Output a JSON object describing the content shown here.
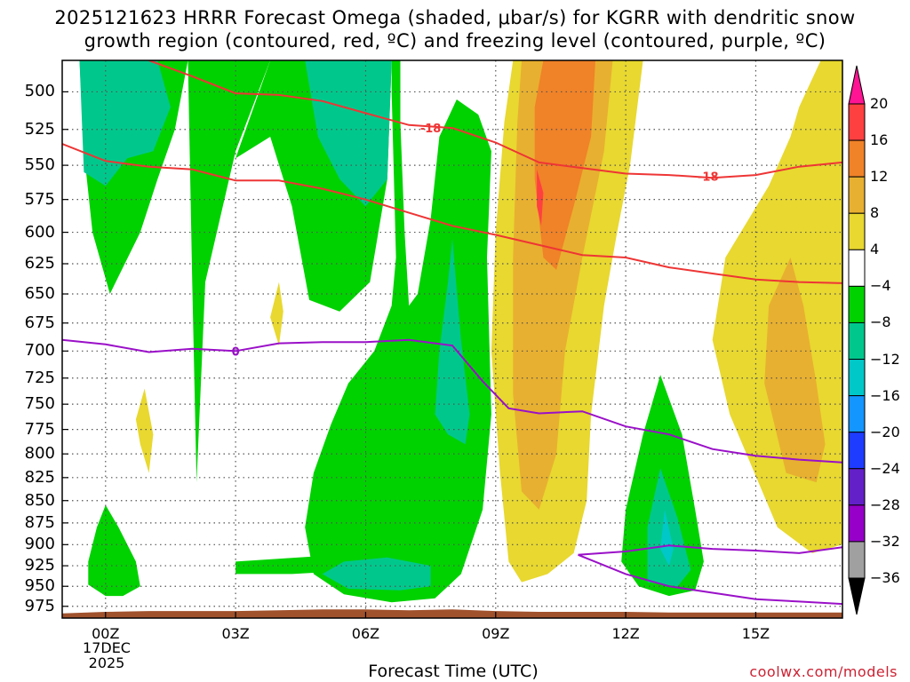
{
  "title": {
    "line1": "2025121623 HRRR Forecast Omega (shaded, μbar/s) for KGRR with dendritic snow",
    "line2": "growth region (contoured, red, ºC) and freezing level (contoured, purple, ºC)"
  },
  "xlabel": "Forecast Time (UTC)",
  "credit": "coolwx.com/models",
  "date_lines": [
    "17DEC",
    "2025"
  ],
  "chart_data": {
    "type": "heatmap",
    "title": "2025121623 HRRR Forecast Omega (shaded, μbar/s) for KGRR with dendritic snow growth region (contoured, red, ºC) and freezing level (contoured, purple, ºC)",
    "xlabel": "Forecast Time (UTC)",
    "ylabel": "",
    "x_ticks": [
      "00Z",
      "03Z",
      "06Z",
      "09Z",
      "12Z",
      "15Z"
    ],
    "x_tick_hours": [
      0,
      3,
      6,
      9,
      12,
      15
    ],
    "xlim_hours": [
      -1,
      17
    ],
    "y_ticks": [
      500,
      525,
      550,
      575,
      600,
      625,
      650,
      675,
      700,
      725,
      750,
      775,
      800,
      825,
      850,
      875,
      900,
      925,
      950,
      975
    ],
    "ylim_hPa": [
      480,
      990
    ],
    "grid": true,
    "colorbar": {
      "labels": [
        "20",
        "16",
        "12",
        "8",
        "4",
        "−4",
        "−8",
        "−12",
        "−16",
        "−20",
        "−24",
        "−28",
        "−32",
        "−36"
      ],
      "colors": [
        "#ff1493",
        "#ff4040",
        "#f08228",
        "#e8b030",
        "#e8d830",
        "#ffffff",
        "#00d200",
        "#00c88c",
        "#00c8c8",
        "#1496ff",
        "#1e3cff",
        "#6420c8",
        "#9600c8",
        "#a0a0a0",
        "#000000"
      ],
      "placement": "right"
    },
    "omega_regions": [
      {
        "level": -4,
        "color": "#00d200",
        "points": [
          [
            -0.6,
            480
          ],
          [
            1.9,
            480
          ],
          [
            2.0,
            640
          ],
          [
            2.1,
            830
          ],
          [
            2.3,
            640
          ],
          [
            3.0,
            540
          ],
          [
            3.8,
            480
          ],
          [
            6.6,
            480
          ],
          [
            6.6,
            500
          ],
          [
            6.7,
            620
          ],
          [
            6.6,
            660
          ],
          [
            6.2,
            700
          ],
          [
            5.6,
            730
          ],
          [
            5.2,
            770
          ],
          [
            4.8,
            820
          ],
          [
            4.6,
            880
          ],
          [
            4.8,
            935
          ],
          [
            5.5,
            960
          ],
          [
            6.6,
            970
          ],
          [
            7.6,
            965
          ],
          [
            8.2,
            935
          ],
          [
            8.7,
            860
          ],
          [
            8.9,
            760
          ],
          [
            8.8,
            620
          ],
          [
            8.9,
            540
          ],
          [
            8.6,
            515
          ],
          [
            8.1,
            505
          ],
          [
            7.7,
            530
          ],
          [
            7.5,
            590
          ],
          [
            7.2,
            650
          ],
          [
            7.0,
            660
          ],
          [
            6.9,
            600
          ],
          [
            6.8,
            520
          ],
          [
            6.8,
            480
          ]
        ]
      },
      {
        "level": -4,
        "color": "#00d200",
        "points": [
          [
            -0.6,
            480
          ],
          [
            1.9,
            480
          ],
          [
            1.6,
            525
          ],
          [
            1.2,
            560
          ],
          [
            0.8,
            600
          ],
          [
            0.1,
            650
          ],
          [
            -0.3,
            600
          ],
          [
            -0.5,
            540
          ]
        ]
      },
      {
        "level": -4,
        "color": "#00d200",
        "points": [
          [
            3.0,
            545
          ],
          [
            3.8,
            480
          ],
          [
            6.6,
            480
          ],
          [
            6.5,
            560
          ],
          [
            6.1,
            640
          ],
          [
            5.4,
            665
          ],
          [
            4.7,
            655
          ],
          [
            4.3,
            580
          ],
          [
            3.8,
            530
          ]
        ]
      },
      {
        "level": -4,
        "color": "#00d200",
        "points": [
          [
            -0.4,
            920
          ],
          [
            -0.2,
            880
          ],
          [
            0.0,
            855
          ],
          [
            0.3,
            880
          ],
          [
            0.7,
            920
          ],
          [
            0.8,
            950
          ],
          [
            0.4,
            962
          ],
          [
            0.0,
            962
          ],
          [
            -0.4,
            948
          ]
        ]
      },
      {
        "level": -4,
        "color": "#00d200",
        "points": [
          [
            3.0,
            920
          ],
          [
            6.0,
            910
          ],
          [
            6.0,
            930
          ],
          [
            4.3,
            935
          ],
          [
            3.0,
            935
          ]
        ]
      },
      {
        "level": -4,
        "color": "#00d200",
        "points": [
          [
            12.8,
            722
          ],
          [
            13.3,
            780
          ],
          [
            13.6,
            860
          ],
          [
            13.8,
            920
          ],
          [
            13.6,
            955
          ],
          [
            13.0,
            962
          ],
          [
            12.3,
            950
          ],
          [
            11.9,
            920
          ],
          [
            12.0,
            860
          ],
          [
            12.4,
            780
          ]
        ]
      },
      {
        "level": -8,
        "color": "#00c88c",
        "points": [
          [
            -0.6,
            480
          ],
          [
            1.2,
            480
          ],
          [
            1.5,
            510
          ],
          [
            1.1,
            540
          ],
          [
            0.5,
            545
          ],
          [
            0.0,
            565
          ],
          [
            -0.5,
            555
          ]
        ]
      },
      {
        "level": -8,
        "color": "#00c88c",
        "points": [
          [
            4.6,
            480
          ],
          [
            6.6,
            480
          ],
          [
            6.5,
            560
          ],
          [
            6.0,
            580
          ],
          [
            5.4,
            560
          ],
          [
            4.9,
            530
          ]
        ]
      },
      {
        "level": -8,
        "color": "#00c88c",
        "points": [
          [
            8.0,
            605
          ],
          [
            8.2,
            690
          ],
          [
            8.4,
            760
          ],
          [
            8.3,
            790
          ],
          [
            7.9,
            780
          ],
          [
            7.6,
            760
          ],
          [
            7.7,
            700
          ],
          [
            7.9,
            640
          ]
        ]
      },
      {
        "level": -8,
        "color": "#00c88c",
        "points": [
          [
            5.0,
            935
          ],
          [
            5.5,
            920
          ],
          [
            6.5,
            915
          ],
          [
            7.5,
            925
          ],
          [
            7.5,
            950
          ],
          [
            6.8,
            955
          ],
          [
            5.6,
            953
          ]
        ]
      },
      {
        "level": -8,
        "color": "#00c88c",
        "points": [
          [
            12.8,
            815
          ],
          [
            13.2,
            870
          ],
          [
            13.5,
            930
          ],
          [
            13.2,
            950
          ],
          [
            12.5,
            945
          ],
          [
            12.5,
            880
          ]
        ]
      },
      {
        "level": -12,
        "color": "#00c8c8",
        "points": [
          [
            12.9,
            860
          ],
          [
            13.1,
            905
          ],
          [
            13.0,
            925
          ],
          [
            12.8,
            905
          ]
        ]
      },
      {
        "level": 4,
        "color": "#e8d830",
        "points": [
          [
            9.4,
            480
          ],
          [
            12.4,
            480
          ],
          [
            12.1,
            550
          ],
          [
            11.8,
            600
          ],
          [
            11.5,
            660
          ],
          [
            11.2,
            760
          ],
          [
            11.1,
            850
          ],
          [
            10.8,
            910
          ],
          [
            10.2,
            935
          ],
          [
            9.6,
            945
          ],
          [
            9.3,
            920
          ],
          [
            9.1,
            820
          ],
          [
            8.9,
            700
          ],
          [
            9.0,
            600
          ],
          [
            9.2,
            520
          ]
        ]
      },
      {
        "level": 4,
        "color": "#e8d830",
        "points": [
          [
            15.3,
            565
          ],
          [
            15.8,
            530
          ],
          [
            16.0,
            510
          ],
          [
            16.5,
            480
          ],
          [
            17.0,
            480
          ],
          [
            17.0,
            900
          ],
          [
            16.3,
            910
          ],
          [
            15.5,
            880
          ],
          [
            14.4,
            760
          ],
          [
            14.0,
            690
          ],
          [
            14.3,
            620
          ]
        ]
      },
      {
        "level": 4,
        "color": "#e8d830",
        "points": [
          [
            0.9,
            735
          ],
          [
            1.1,
            780
          ],
          [
            1.0,
            820
          ],
          [
            0.8,
            790
          ],
          [
            0.7,
            765
          ]
        ]
      },
      {
        "level": 4,
        "color": "#e8d830",
        "points": [
          [
            4.0,
            640
          ],
          [
            4.1,
            665
          ],
          [
            4.0,
            695
          ],
          [
            3.8,
            670
          ]
        ]
      },
      {
        "level": 8,
        "color": "#e8b030",
        "points": [
          [
            9.6,
            480
          ],
          [
            11.7,
            480
          ],
          [
            11.5,
            540
          ],
          [
            11.0,
            620
          ],
          [
            10.6,
            700
          ],
          [
            10.4,
            800
          ],
          [
            10.0,
            860
          ],
          [
            9.6,
            840
          ],
          [
            9.4,
            740
          ],
          [
            9.4,
            620
          ],
          [
            9.5,
            520
          ]
        ]
      },
      {
        "level": 8,
        "color": "#e8b030",
        "points": [
          [
            15.8,
            620
          ],
          [
            16.1,
            660
          ],
          [
            16.4,
            730
          ],
          [
            16.6,
            790
          ],
          [
            16.4,
            830
          ],
          [
            15.7,
            820
          ],
          [
            15.2,
            730
          ],
          [
            15.3,
            660
          ]
        ]
      },
      {
        "level": 12,
        "color": "#f08228",
        "points": [
          [
            10.1,
            480
          ],
          [
            11.3,
            480
          ],
          [
            11.2,
            530
          ],
          [
            10.8,
            580
          ],
          [
            10.4,
            630
          ],
          [
            10.1,
            620
          ],
          [
            9.9,
            560
          ],
          [
            9.9,
            510
          ]
        ]
      },
      {
        "level": 16,
        "color": "#ff4040",
        "points": [
          [
            9.95,
            553
          ],
          [
            10.1,
            570
          ],
          [
            10.05,
            595
          ],
          [
            9.95,
            580
          ]
        ]
      }
    ],
    "red_contours": [
      {
        "label": "-18",
        "points": [
          [
            -1,
            535
          ],
          [
            0,
            547
          ],
          [
            1,
            551
          ],
          [
            2,
            553
          ],
          [
            3,
            561
          ],
          [
            4,
            561
          ],
          [
            5,
            567
          ],
          [
            6,
            575
          ],
          [
            7,
            585
          ],
          [
            8,
            595
          ],
          [
            9,
            602
          ],
          [
            10,
            610
          ],
          [
            11,
            618
          ],
          [
            12,
            620
          ],
          [
            13,
            628
          ],
          [
            14,
            633
          ],
          [
            15,
            638
          ],
          [
            16,
            640
          ],
          [
            17,
            641
          ]
        ]
      },
      {
        "label": "-18",
        "points": [
          [
            1,
            480
          ],
          [
            2,
            490
          ],
          [
            3,
            501
          ],
          [
            4,
            502
          ],
          [
            5,
            506
          ],
          [
            6,
            514
          ],
          [
            7,
            522
          ],
          [
            8,
            524
          ],
          [
            9,
            534
          ],
          [
            10,
            548
          ],
          [
            11,
            552
          ],
          [
            12,
            556
          ],
          [
            13,
            557
          ],
          [
            14,
            559
          ],
          [
            15,
            557
          ],
          [
            16,
            551
          ],
          [
            17,
            548
          ]
        ]
      }
    ],
    "red_contour_labels": [
      {
        "text": "-18",
        "x": 7.5,
        "y": 524
      },
      {
        "text": "-18",
        "x": 13.9,
        "y": 558
      }
    ],
    "purple_contours": [
      {
        "label": "0",
        "points": [
          [
            -1,
            690
          ],
          [
            0,
            694
          ],
          [
            1,
            701
          ],
          [
            2,
            698
          ],
          [
            3,
            700
          ],
          [
            4,
            693
          ],
          [
            5,
            692
          ],
          [
            6,
            692
          ],
          [
            7,
            690
          ],
          [
            8,
            695
          ],
          [
            8.7,
            728
          ],
          [
            9.3,
            754
          ],
          [
            10,
            759
          ],
          [
            11,
            757
          ],
          [
            12,
            772
          ],
          [
            13,
            780
          ],
          [
            14,
            795
          ],
          [
            15,
            802
          ],
          [
            16,
            806
          ],
          [
            17,
            809
          ]
        ]
      },
      {
        "label": "",
        "points": [
          [
            10.9,
            912
          ],
          [
            12,
            908
          ],
          [
            13,
            901
          ],
          [
            14,
            905
          ],
          [
            15,
            907
          ],
          [
            16,
            910
          ],
          [
            17,
            903
          ]
        ]
      },
      {
        "label": "",
        "points": [
          [
            10.9,
            912
          ],
          [
            12,
            935
          ],
          [
            13,
            950
          ],
          [
            14,
            958
          ],
          [
            15,
            966
          ],
          [
            16,
            969
          ],
          [
            17,
            972
          ]
        ]
      }
    ],
    "purple_contour_labels": [
      {
        "text": "0",
        "x": 3.0,
        "y": 700
      }
    ],
    "terrain": {
      "color": "#a0522d",
      "surface_hPa": [
        [
          -1,
          984
        ],
        [
          0,
          982
        ],
        [
          1,
          981
        ],
        [
          2,
          981
        ],
        [
          3,
          981
        ],
        [
          4,
          980
        ],
        [
          5,
          979
        ],
        [
          6,
          979
        ],
        [
          7,
          980
        ],
        [
          8,
          979
        ],
        [
          9,
          981
        ],
        [
          10,
          982
        ],
        [
          11,
          982
        ],
        [
          12,
          982
        ],
        [
          13,
          983
        ],
        [
          14,
          983
        ],
        [
          15,
          983
        ],
        [
          16,
          983
        ],
        [
          17,
          983
        ]
      ]
    }
  }
}
